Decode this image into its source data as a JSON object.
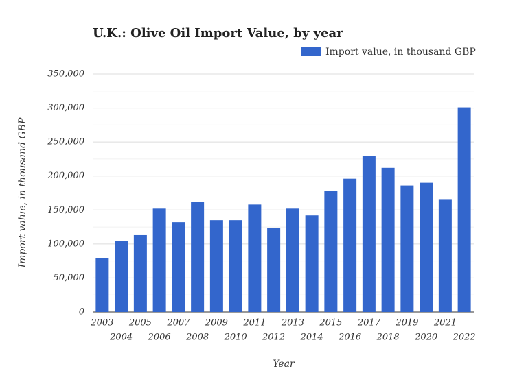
{
  "chart_data": {
    "type": "bar",
    "title": "U.K.: Olive Oil Import Value, by year",
    "x_label": "Year",
    "y_label": "Import value, in thousand GBP",
    "categories": [
      "2003",
      "2004",
      "2005",
      "2006",
      "2007",
      "2008",
      "2009",
      "2010",
      "2011",
      "2012",
      "2013",
      "2014",
      "2015",
      "2016",
      "2017",
      "2018",
      "2019",
      "2020",
      "2021",
      "2022"
    ],
    "series": [
      {
        "name": "Import value, in thousand GBP",
        "color": "#3366cc",
        "values": [
          79000,
          104000,
          113000,
          152000,
          132000,
          162000,
          135000,
          135000,
          158000,
          124000,
          152000,
          142000,
          178000,
          196000,
          229000,
          212000,
          186000,
          190000,
          166000,
          301000
        ]
      }
    ],
    "ylim": [
      0,
      350000
    ],
    "yticks": [
      0,
      {
        "value": 50000,
        "label": "50,000"
      },
      {
        "value": 100000,
        "label": "100,000"
      },
      {
        "value": 150000,
        "label": "150,000"
      },
      {
        "value": 200000,
        "label": "200,000"
      },
      {
        "value": 250000,
        "label": "250,000"
      },
      {
        "value": 300000,
        "label": "300,000"
      },
      {
        "value": 350000,
        "label": "350,000"
      }
    ],
    "minor_yticks": [
      25000,
      75000,
      125000,
      175000,
      225000,
      275000,
      325000
    ],
    "grid": true,
    "legend_position": "top-right"
  }
}
